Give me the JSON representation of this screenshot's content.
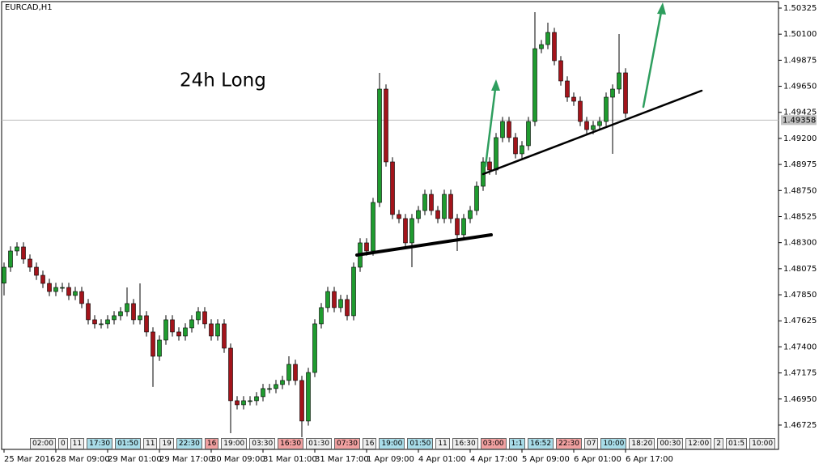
{
  "chart_data": {
    "type": "candlestick",
    "title": "EURCAD,H1",
    "annotation": "24h Long",
    "annotation_color": "#33cc33",
    "up_color": "#1f9b2f",
    "down_color": "#a3141b",
    "wick_color": "#000000",
    "open": [
      1.4795,
      1.48088,
      1.48228,
      1.48263,
      1.48158,
      1.48088,
      1.48018,
      1.47948,
      1.47878,
      1.47913,
      1.47913,
      1.47844,
      1.47878,
      1.47774,
      1.47634,
      1.47599,
      1.47599,
      1.47634,
      1.47669,
      1.47704,
      1.47774,
      1.47634,
      1.47669,
      1.47529,
      1.47319,
      1.47459,
      1.47634,
      1.47529,
      1.47494,
      1.47564,
      1.47634,
      1.47704,
      1.47599,
      1.47494,
      1.47599,
      1.47389,
      1.46935,
      1.469,
      1.46935,
      1.46935,
      1.4697,
      1.4704,
      1.4704,
      1.47075,
      1.4711,
      1.47249,
      1.4711,
      1.4676,
      1.47179,
      1.47599,
      1.47739,
      1.47878,
      1.47739,
      1.47809,
      1.47669,
      1.48088,
      1.48298,
      1.48228,
      1.48647,
      1.49626,
      1.48997,
      1.48543,
      1.48508,
      1.48298,
      1.48508,
      1.48577,
      1.48717,
      1.48577,
      1.48508,
      1.48717,
      1.48508,
      1.48368,
      1.48508,
      1.48577,
      1.48787,
      1.48997,
      1.48927,
      1.49207,
      1.49346,
      1.49207,
      1.49067,
      1.49137,
      1.49346,
      1.49975,
      1.5001,
      1.50115,
      1.49871,
      1.49696,
      1.49556,
      1.49521,
      1.49346,
      1.49276,
      1.49311,
      1.49346,
      1.49556,
      1.49626,
      1.49766
    ],
    "high": [
      1.48128,
      1.48268,
      1.48303,
      1.48303,
      1.48198,
      1.48128,
      1.48058,
      1.47988,
      1.47953,
      1.47953,
      1.47953,
      1.47918,
      1.47918,
      1.47814,
      1.47674,
      1.47639,
      1.47674,
      1.47709,
      1.47744,
      1.47913,
      1.47814,
      1.47948,
      1.47709,
      1.47569,
      1.47499,
      1.47674,
      1.47674,
      1.47569,
      1.47604,
      1.47674,
      1.47744,
      1.47744,
      1.47639,
      1.47639,
      1.47639,
      1.47429,
      1.46975,
      1.46975,
      1.46975,
      1.4701,
      1.4708,
      1.4708,
      1.47115,
      1.4715,
      1.47319,
      1.47289,
      1.4715,
      1.47219,
      1.47639,
      1.47779,
      1.47918,
      1.47918,
      1.47849,
      1.47849,
      1.48128,
      1.48338,
      1.48338,
      1.48687,
      1.49766,
      1.49666,
      1.49037,
      1.48583,
      1.48548,
      1.48548,
      1.48617,
      1.48757,
      1.48757,
      1.48617,
      1.48757,
      1.48757,
      1.48548,
      1.48548,
      1.48617,
      1.48827,
      1.49037,
      1.49037,
      1.49247,
      1.49386,
      1.49386,
      1.49247,
      1.49177,
      1.49386,
      1.5029,
      1.5005,
      1.50199,
      1.50155,
      1.49911,
      1.49736,
      1.49596,
      1.49561,
      1.49386,
      1.49351,
      1.49386,
      1.49596,
      1.49666,
      1.50101,
      1.49806
    ],
    "low": [
      1.47844,
      1.48048,
      1.48188,
      1.48118,
      1.48048,
      1.47978,
      1.47908,
      1.47838,
      1.47838,
      1.47873,
      1.47804,
      1.47804,
      1.47734,
      1.47594,
      1.47559,
      1.47559,
      1.47559,
      1.47594,
      1.47629,
      1.47664,
      1.47594,
      1.47594,
      1.47489,
      1.47054,
      1.47279,
      1.47419,
      1.47489,
      1.47454,
      1.47454,
      1.47524,
      1.47594,
      1.47559,
      1.47454,
      1.47454,
      1.47349,
      1.46655,
      1.4686,
      1.4686,
      1.46895,
      1.46895,
      1.4693,
      1.47,
      1.47,
      1.47035,
      1.4707,
      1.4707,
      1.4662,
      1.4672,
      1.47139,
      1.47559,
      1.47699,
      1.47699,
      1.47699,
      1.47629,
      1.47629,
      1.48048,
      1.48188,
      1.48188,
      1.48607,
      1.48957,
      1.48503,
      1.48468,
      1.48258,
      1.48088,
      1.48468,
      1.48537,
      1.48537,
      1.48468,
      1.48468,
      1.48468,
      1.48228,
      1.48328,
      1.48468,
      1.48537,
      1.48747,
      1.48887,
      1.48887,
      1.49167,
      1.49167,
      1.49027,
      1.49027,
      1.49097,
      1.49306,
      1.49935,
      1.4997,
      1.49831,
      1.49656,
      1.49516,
      1.49481,
      1.49306,
      1.49236,
      1.49236,
      1.49271,
      1.49306,
      1.49067,
      1.49586,
      1.49376
    ],
    "close": [
      1.48088,
      1.48228,
      1.48263,
      1.48158,
      1.48088,
      1.48018,
      1.47948,
      1.47878,
      1.47913,
      1.47913,
      1.47844,
      1.47878,
      1.47774,
      1.47634,
      1.47599,
      1.47599,
      1.47634,
      1.47669,
      1.47704,
      1.47774,
      1.47634,
      1.47669,
      1.47529,
      1.47319,
      1.47459,
      1.47634,
      1.47529,
      1.47494,
      1.47564,
      1.47634,
      1.47704,
      1.47599,
      1.47494,
      1.47599,
      1.47389,
      1.46935,
      1.469,
      1.46935,
      1.46935,
      1.4697,
      1.4704,
      1.4704,
      1.47075,
      1.4711,
      1.47249,
      1.4711,
      1.4676,
      1.47179,
      1.47599,
      1.47739,
      1.47878,
      1.47739,
      1.47809,
      1.47669,
      1.48088,
      1.48298,
      1.48228,
      1.48647,
      1.49626,
      1.48997,
      1.48543,
      1.48508,
      1.48298,
      1.48508,
      1.48577,
      1.48717,
      1.48577,
      1.48508,
      1.48717,
      1.48508,
      1.48368,
      1.48508,
      1.48577,
      1.48787,
      1.48997,
      1.48927,
      1.49207,
      1.49346,
      1.49207,
      1.49067,
      1.49137,
      1.49346,
      1.49975,
      1.5001,
      1.50115,
      1.49871,
      1.49696,
      1.49556,
      1.49521,
      1.49346,
      1.49276,
      1.49311,
      1.49346,
      1.49556,
      1.49626,
      1.49766,
      1.49416
    ],
    "current_price": 1.49358,
    "xlim": [
      -0.375,
      119.625
    ],
    "xticks": [
      {
        "value": 0,
        "label": "25 Mar 2016"
      },
      {
        "value": 8,
        "label": "28 Mar 09:00"
      },
      {
        "value": 16,
        "label": "29 Mar 01:00"
      },
      {
        "value": 24,
        "label": "29 Mar 17:00"
      },
      {
        "value": 32,
        "label": "30 Mar 09:00"
      },
      {
        "value": 40,
        "label": "31 Mar 01:00"
      },
      {
        "value": 48,
        "label": "31 Mar 17:00"
      },
      {
        "value": 56,
        "label": "1 Apr 09:00"
      },
      {
        "value": 64,
        "label": "4 Apr 01:00"
      },
      {
        "value": 72,
        "label": "4 Apr 17:00"
      },
      {
        "value": 80,
        "label": "5 Apr 09:00"
      },
      {
        "value": 88,
        "label": "6 Apr 01:00"
      },
      {
        "value": 96,
        "label": "6 Apr 17:00"
      }
    ],
    "ylim": [
      1.46515,
      1.50381
    ],
    "yticks": [
      1.50325,
      {
        "value": 1.501,
        "label": "1.50100"
      },
      1.49875,
      {
        "value": 1.4965,
        "label": "1.49650"
      },
      1.49425,
      {
        "value": 1.492,
        "label": "1.49200"
      },
      1.48975,
      {
        "value": 1.4875,
        "label": "1.48750"
      },
      1.48525,
      {
        "value": 1.483,
        "label": "1.48300"
      },
      1.48075,
      {
        "value": 1.4785,
        "label": "1.47850"
      },
      1.47625,
      {
        "value": 1.474,
        "label": "1.47400"
      },
      1.47175,
      {
        "value": 1.4695,
        "label": "1.46950"
      },
      1.46725
    ],
    "events": [
      {
        "text": "02:00",
        "color": "#eeeeee"
      },
      {
        "text": "0",
        "color": "#eeeeee"
      },
      {
        "text": "11",
        "color": "#eeeeee"
      },
      {
        "text": "17:30",
        "color": "#a8dce8"
      },
      {
        "text": "01:50",
        "color": "#a8dce8"
      },
      {
        "text": "11",
        "color": "#eeeeee"
      },
      {
        "text": "19",
        "color": "#eeeeee"
      },
      {
        "text": "22:30",
        "color": "#a8dce8"
      },
      {
        "text": "16",
        "color": "#f0a0a0"
      },
      {
        "text": "19:00",
        "color": "#eeeeee"
      },
      {
        "text": "03:30",
        "color": "#eeeeee"
      },
      {
        "text": "16:30",
        "color": "#f0a0a0"
      },
      {
        "text": "01:30",
        "color": "#eeeeee"
      },
      {
        "text": "07:30",
        "color": "#f0a0a0"
      },
      {
        "text": "16",
        "color": "#eeeeee"
      },
      {
        "text": "19:00",
        "color": "#a8dce8"
      },
      {
        "text": "01:50",
        "color": "#a8dce8"
      },
      {
        "text": "11",
        "color": "#eeeeee"
      },
      {
        "text": "16:30",
        "color": "#eeeeee"
      },
      {
        "text": "03:00",
        "color": "#f0a0a0"
      },
      {
        "text": "1:1",
        "color": "#a8dce8"
      },
      {
        "text": "16:52",
        "color": "#a8dce8"
      },
      {
        "text": "22:30",
        "color": "#f0a0a0"
      },
      {
        "text": "07",
        "color": "#eeeeee"
      },
      {
        "text": "10:00",
        "color": "#a8dce8"
      },
      {
        "text": "18:20",
        "color": "#eeeeee"
      },
      {
        "text": "00:30",
        "color": "#eeeeee"
      },
      {
        "text": "12:00",
        "color": "#eeeeee"
      },
      {
        "text": "2",
        "color": "#eeeeee"
      },
      {
        "text": "01:5",
        "color": "#eeeeee"
      },
      {
        "text": "10:00",
        "color": "#eeeeee"
      }
    ]
  }
}
